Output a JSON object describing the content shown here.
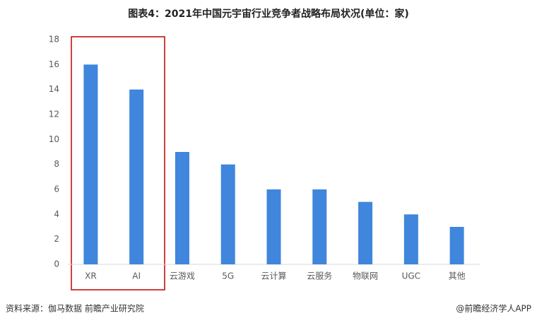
{
  "chart_data": {
    "type": "bar",
    "title": "图表4：2021年中国元宇宙行业竞争者战略布局状况(单位：家)",
    "categories": [
      "XR",
      "AI",
      "云游戏",
      "5G",
      "云计算",
      "云服务",
      "物联网",
      "UGC",
      "其他"
    ],
    "values": [
      16,
      14,
      9,
      8,
      6,
      6,
      5,
      4,
      3
    ],
    "color": "#3f86dc",
    "ylim": [
      0,
      18
    ],
    "yticks": [
      0,
      2,
      4,
      6,
      8,
      10,
      12,
      14,
      16,
      18
    ],
    "grid": false,
    "source": "资料来源：伽马数据 前瞻产业研究院",
    "credit": "@前瞻经济学人APP"
  }
}
